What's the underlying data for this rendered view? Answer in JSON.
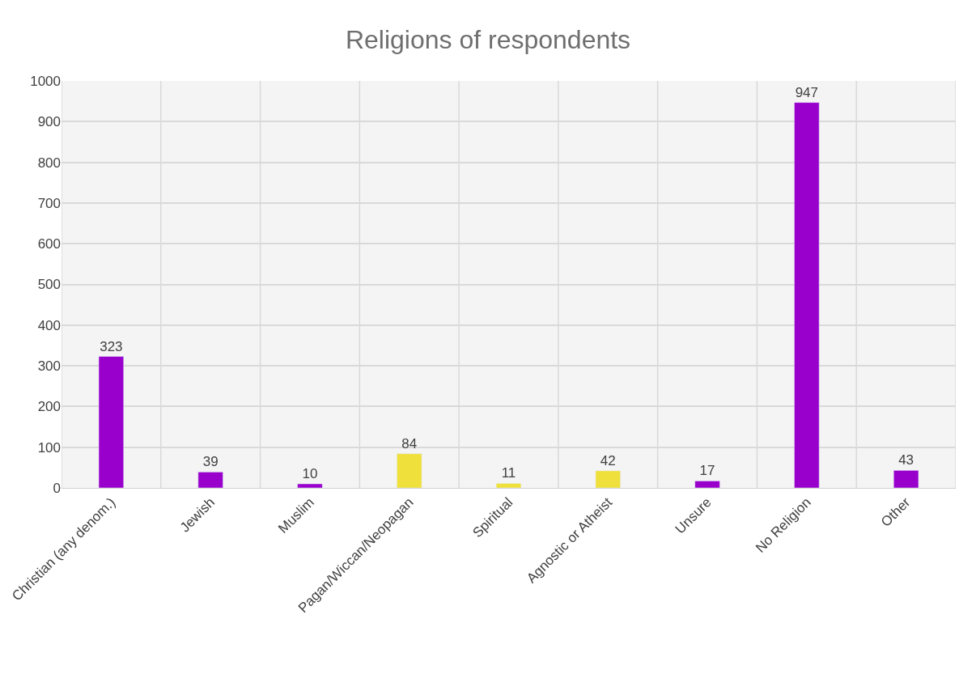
{
  "chart_data": {
    "type": "bar",
    "title": "Religions of respondents",
    "categories": [
      "Christian (any denom.)",
      "Jewish",
      "Muslim",
      "Pagan/Wiccan/Neopagan",
      "Spiritual",
      "Agnostic or Atheist",
      "Unsure",
      "No Religion",
      "Other"
    ],
    "values": [
      323,
      39,
      10,
      84,
      11,
      42,
      17,
      947,
      43
    ],
    "colors": [
      "#9900cc",
      "#9900cc",
      "#9900cc",
      "#f0e03c",
      "#f0e03c",
      "#f0e03c",
      "#9900cc",
      "#9900cc",
      "#9900cc"
    ],
    "ylim": [
      0,
      1000
    ],
    "yticks": [
      0,
      100,
      200,
      300,
      400,
      500,
      600,
      700,
      800,
      900,
      1000
    ],
    "grid": true,
    "data_labels": true
  }
}
